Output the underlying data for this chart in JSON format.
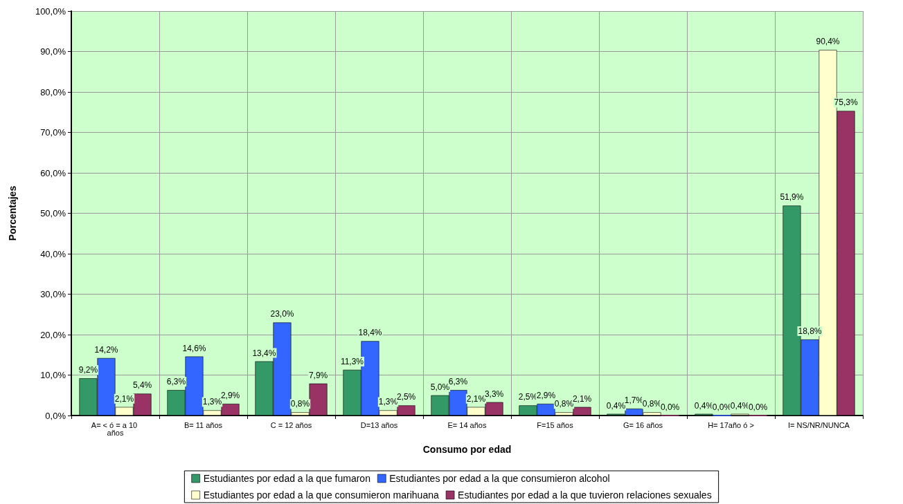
{
  "chart_data": {
    "type": "bar",
    "xlabel": "Consumo por edad",
    "ylabel": "Porcentajes",
    "categories": [
      "A= < ó = a 10 años",
      "B= 11 años",
      "C = 12 años",
      "D=13 años",
      "E= 14 años",
      "F=15 años",
      "G= 16 años",
      "H= 17año ó >",
      "I= NS/NR/NUNCA"
    ],
    "series": [
      {
        "name": "Estudiantes por edad a la que fumaron",
        "color": "#339966",
        "values": [
          9.2,
          6.3,
          13.4,
          11.3,
          5.0,
          2.5,
          0.4,
          0.4,
          51.9
        ],
        "value_labels": [
          "9,2%",
          "6,3%",
          "13,4%",
          "11,3%",
          "5,0%",
          "2,5%",
          "0,4%",
          "0,4%",
          "51,9%"
        ]
      },
      {
        "name": "Estudiantes por edad a la que consumieron alcohol",
        "color": "#3366ff",
        "values": [
          14.2,
          14.6,
          23.0,
          18.4,
          6.3,
          2.9,
          1.7,
          0.0,
          18.8
        ],
        "value_labels": [
          "14,2%",
          "14,6%",
          "23,0%",
          "18,4%",
          "6,3%",
          "2,9%",
          "1,7%",
          "0,0%",
          "18,8%"
        ]
      },
      {
        "name": "Estudiantes por edad a la que consumieron marihuana",
        "color": "#ffffcc",
        "values": [
          2.1,
          1.3,
          0.8,
          1.3,
          2.1,
          0.8,
          0.8,
          0.4,
          90.4
        ],
        "value_labels": [
          "2,1%",
          "1,3%",
          "0,8%",
          "1,3%",
          "2,1%",
          "0,8%",
          "0,8%",
          "0,4%",
          "90,4%"
        ]
      },
      {
        "name": "Estudiantes por edad a la que tuvieron relaciones sexuales",
        "color": "#993366",
        "values": [
          5.4,
          2.9,
          7.9,
          2.5,
          3.3,
          2.1,
          0.0,
          0.0,
          75.3
        ],
        "value_labels": [
          "5,4%",
          "2,9%",
          "7,9%",
          "2,5%",
          "3,3%",
          "2,1%",
          "0,0%",
          "0,0%",
          "75,3%"
        ]
      }
    ],
    "ylim": [
      0,
      100
    ],
    "yticks": [
      {
        "value": 0,
        "label": "0,0%"
      },
      {
        "value": 10,
        "label": "10,0%"
      },
      {
        "value": 20,
        "label": "20,0%"
      },
      {
        "value": 30,
        "label": "30,0%"
      },
      {
        "value": 40,
        "label": "40,0%"
      },
      {
        "value": 50,
        "label": "50,0%"
      },
      {
        "value": 60,
        "label": "60,0%"
      },
      {
        "value": 70,
        "label": "70,0%"
      },
      {
        "value": 80,
        "label": "80,0%"
      },
      {
        "value": 90,
        "label": "90,0%"
      },
      {
        "value": 100,
        "label": "100,0%"
      }
    ],
    "grid": true,
    "legend": "bottom"
  }
}
